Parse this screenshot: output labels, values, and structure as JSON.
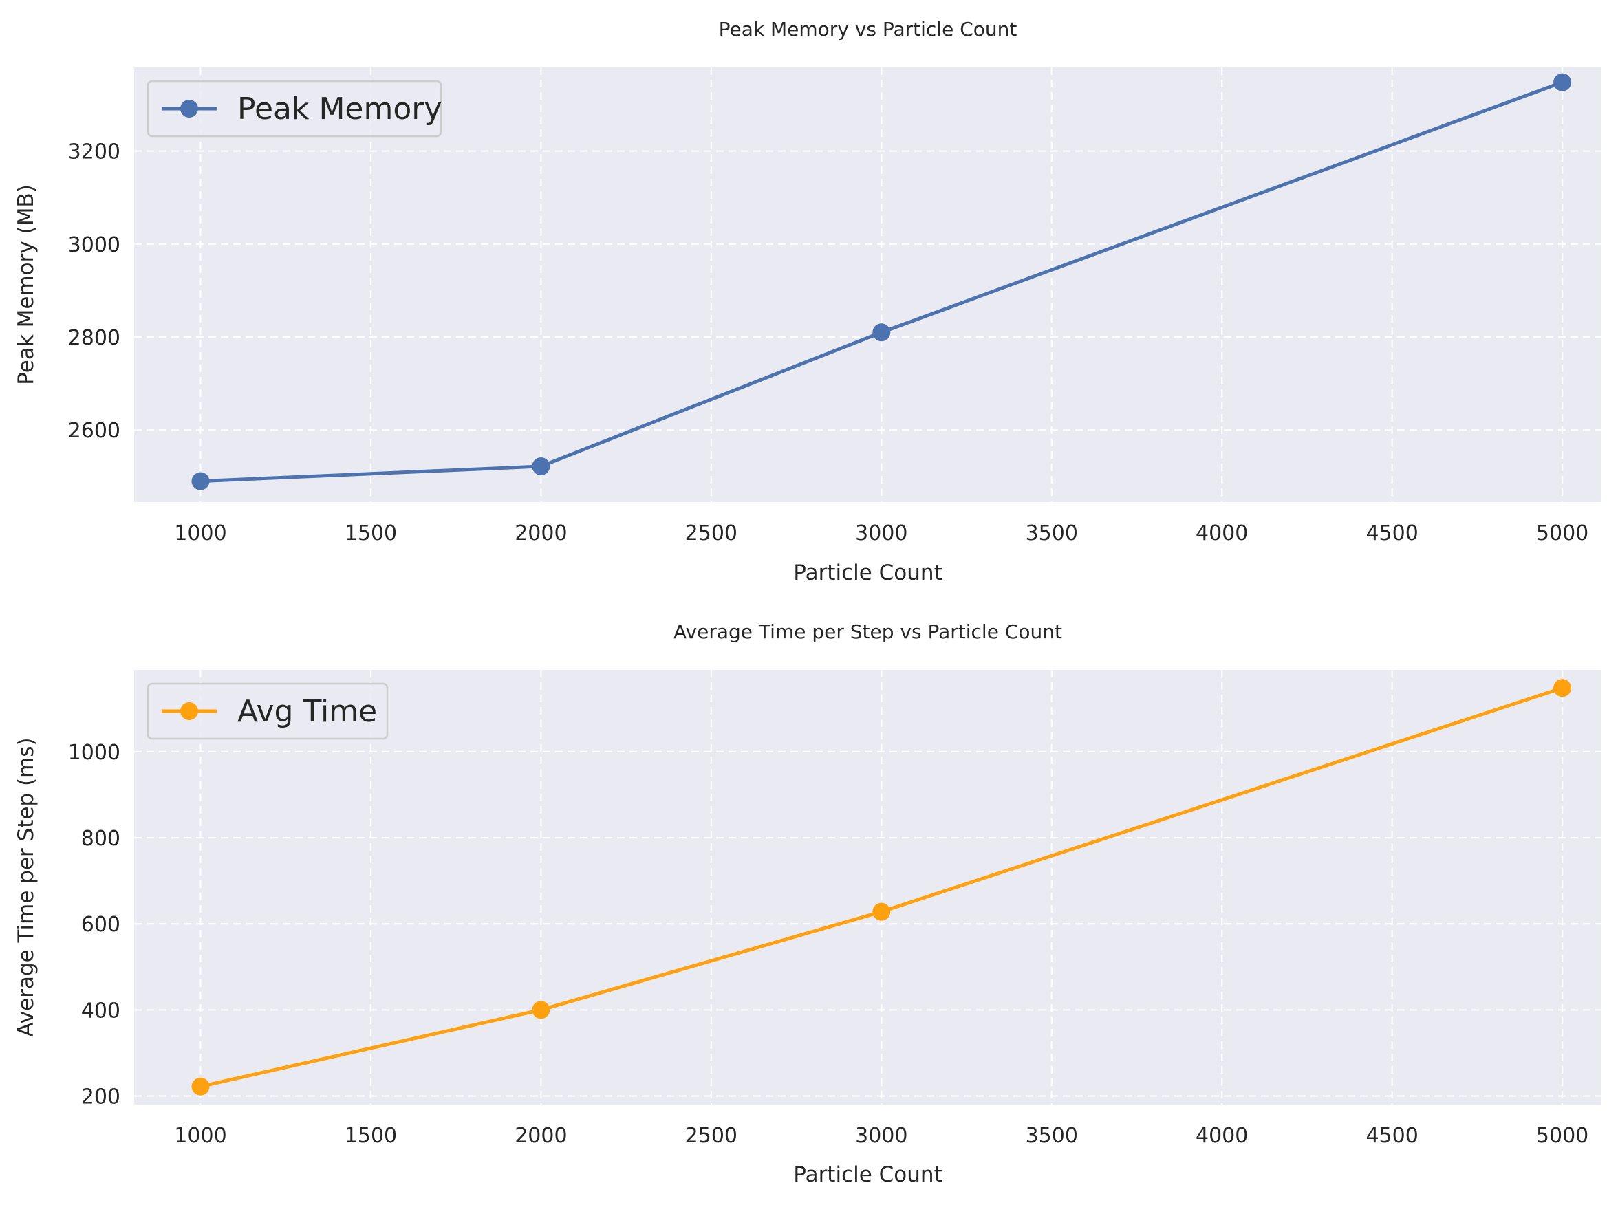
{
  "chart_data": [
    {
      "type": "line",
      "title": "Peak Memory vs Particle Count",
      "xlabel": "Particle Count",
      "ylabel": "Peak Memory (MB)",
      "xlim": [
        805,
        5115
      ],
      "ylim": [
        2445,
        3380
      ],
      "xticks": [
        1000,
        1500,
        2000,
        2500,
        3000,
        3500,
        4000,
        4500,
        5000
      ],
      "yticks": [
        2600,
        2800,
        3000,
        3200
      ],
      "grid": true,
      "legend": "top-left",
      "x": [
        1000,
        2000,
        3000,
        5000
      ],
      "series": [
        {
          "name": "Peak Memory",
          "color": "#4c72b0",
          "values": [
            2490,
            2522,
            2810,
            3348
          ]
        }
      ]
    },
    {
      "type": "line",
      "title": "Average Time per Step vs Particle Count",
      "xlabel": "Particle Count",
      "ylabel": "Average Time per Step (ms)",
      "xlim": [
        805,
        5115
      ],
      "ylim": [
        180,
        1190
      ],
      "xticks": [
        1000,
        1500,
        2000,
        2500,
        3000,
        3500,
        4000,
        4500,
        5000
      ],
      "yticks": [
        200,
        400,
        600,
        800,
        1000
      ],
      "grid": true,
      "legend": "top-left",
      "x": [
        1000,
        2000,
        3000,
        5000
      ],
      "series": [
        {
          "name": "Avg Time",
          "color": "#ffa00e",
          "values": [
            222,
            400,
            628,
            1148
          ]
        }
      ]
    }
  ]
}
